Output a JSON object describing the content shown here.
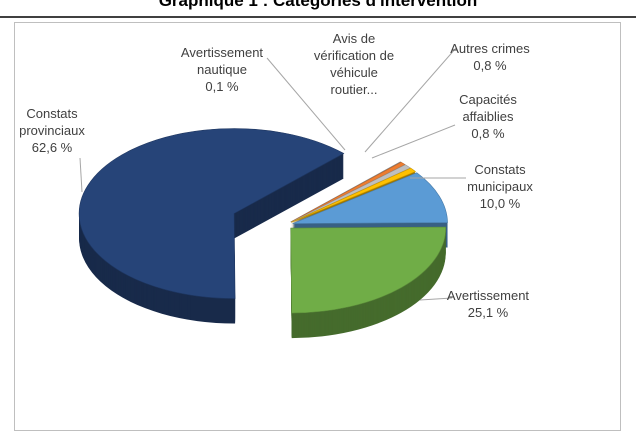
{
  "chart_data": {
    "type": "pie3d",
    "title": "Graphique 1 : Catégories d'intervention",
    "categories": [
      "Avertissement nautique",
      "Avis de vérification de véhicule routier...",
      "Autres crimes",
      "Capacités affaiblies",
      "Constats municipaux",
      "Avertissement",
      "Constats provinciaux"
    ],
    "values": [
      0.1,
      0.6,
      0.8,
      0.8,
      10,
      25.1,
      62.6
    ],
    "value_labels": [
      "0,1 %",
      null,
      "0,8 %",
      "0,8 %",
      "10,0 %",
      "25,1 %",
      "62,6 %"
    ],
    "colors": [
      "#a5a5a5",
      "#ed7d31",
      "#bfbfbf",
      "#ffc000",
      "#5b9bd5",
      "#70ad47",
      "#264478"
    ]
  }
}
